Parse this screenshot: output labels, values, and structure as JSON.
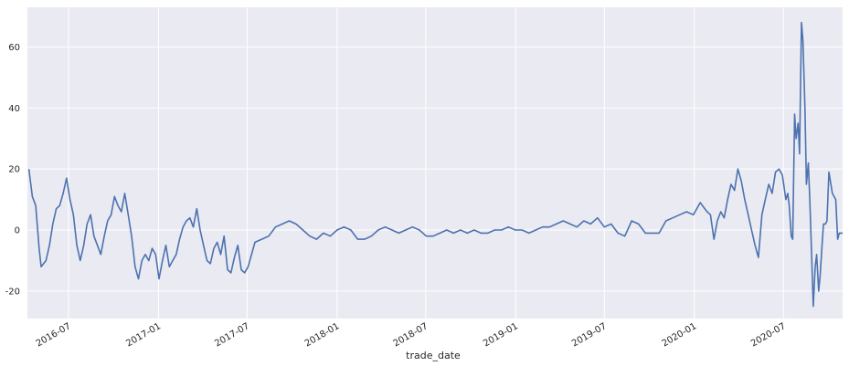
{
  "chart_data": {
    "type": "line",
    "title": "",
    "xlabel": "trade_date",
    "ylabel": "",
    "grid": true,
    "legend": "none",
    "colors": {
      "background": "#eaeaf2",
      "grid": "#ffffff",
      "line": "#4c72b0",
      "text": "#262626"
    },
    "xlim": [
      "2016-04-08",
      "2020-10-30"
    ],
    "ylim": [
      -29,
      73
    ],
    "x_ticks": [
      "2016-07",
      "2017-01",
      "2017-07",
      "2018-01",
      "2018-07",
      "2019-01",
      "2019-07",
      "2020-01",
      "2020-07"
    ],
    "y_ticks": [
      "-20",
      "0",
      "20",
      "40",
      "60"
    ],
    "series": [
      {
        "x": [
          "2016-04-11",
          "2016-04-18",
          "2016-04-25",
          "2016-05-02",
          "2016-05-06",
          "2016-05-16",
          "2016-05-23",
          "2016-05-30",
          "2016-06-06",
          "2016-06-13",
          "2016-06-20",
          "2016-06-27",
          "2016-07-04",
          "2016-07-11",
          "2016-07-18",
          "2016-07-25",
          "2016-08-01",
          "2016-08-08",
          "2016-08-15",
          "2016-08-22",
          "2016-08-29",
          "2016-09-05",
          "2016-09-12",
          "2016-09-19",
          "2016-09-26",
          "2016-10-03",
          "2016-10-10",
          "2016-10-17",
          "2016-10-24",
          "2016-10-31",
          "2016-11-07",
          "2016-11-14",
          "2016-11-21",
          "2016-11-28",
          "2016-12-05",
          "2016-12-12",
          "2016-12-19",
          "2016-12-26",
          "2017-01-02",
          "2017-01-09",
          "2017-01-16",
          "2017-01-23",
          "2017-01-30",
          "2017-02-06",
          "2017-02-13",
          "2017-02-20",
          "2017-02-27",
          "2017-03-06",
          "2017-03-13",
          "2017-03-20",
          "2017-03-27",
          "2017-04-03",
          "2017-04-10",
          "2017-04-17",
          "2017-04-24",
          "2017-05-01",
          "2017-05-08",
          "2017-05-15",
          "2017-05-22",
          "2017-05-29",
          "2017-06-05",
          "2017-06-12",
          "2017-06-19",
          "2017-06-26",
          "2017-07-03",
          "2017-07-17",
          "2017-07-31",
          "2017-08-14",
          "2017-08-28",
          "2017-09-11",
          "2017-09-25",
          "2017-10-09",
          "2017-10-23",
          "2017-11-06",
          "2017-11-20",
          "2017-12-04",
          "2017-12-18",
          "2018-01-01",
          "2018-01-15",
          "2018-01-29",
          "2018-02-12",
          "2018-02-26",
          "2018-03-12",
          "2018-03-26",
          "2018-04-09",
          "2018-04-23",
          "2018-05-07",
          "2018-05-21",
          "2018-06-04",
          "2018-06-18",
          "2018-07-02",
          "2018-07-16",
          "2018-07-30",
          "2018-08-13",
          "2018-08-27",
          "2018-09-10",
          "2018-09-24",
          "2018-10-08",
          "2018-10-22",
          "2018-11-05",
          "2018-11-19",
          "2018-12-03",
          "2018-12-17",
          "2018-12-31",
          "2019-01-14",
          "2019-01-28",
          "2019-02-11",
          "2019-02-25",
          "2019-03-11",
          "2019-03-25",
          "2019-04-08",
          "2019-04-22",
          "2019-05-06",
          "2019-05-20",
          "2019-06-03",
          "2019-06-17",
          "2019-07-01",
          "2019-07-15",
          "2019-07-29",
          "2019-08-12",
          "2019-08-26",
          "2019-09-09",
          "2019-09-23",
          "2019-10-07",
          "2019-10-21",
          "2019-11-04",
          "2019-11-18",
          "2019-12-02",
          "2019-12-16",
          "2019-12-30",
          "2020-01-13",
          "2020-01-27",
          "2020-02-03",
          "2020-02-10",
          "2020-02-17",
          "2020-02-24",
          "2020-03-02",
          "2020-03-09",
          "2020-03-16",
          "2020-03-23",
          "2020-03-30",
          "2020-04-06",
          "2020-04-13",
          "2020-04-20",
          "2020-04-27",
          "2020-05-04",
          "2020-05-11",
          "2020-05-18",
          "2020-05-25",
          "2020-06-01",
          "2020-06-08",
          "2020-06-15",
          "2020-06-22",
          "2020-06-29",
          "2020-07-06",
          "2020-07-10",
          "2020-07-13",
          "2020-07-17",
          "2020-07-20",
          "2020-07-24",
          "2020-07-27",
          "2020-07-31",
          "2020-08-03",
          "2020-08-07",
          "2020-08-10",
          "2020-08-14",
          "2020-08-17",
          "2020-08-21",
          "2020-08-24",
          "2020-08-28",
          "2020-08-31",
          "2020-09-04",
          "2020-09-07",
          "2020-09-11",
          "2020-09-14",
          "2020-09-18",
          "2020-09-21",
          "2020-09-25",
          "2020-09-28",
          "2020-10-02",
          "2020-10-09",
          "2020-10-16",
          "2020-10-20",
          "2020-10-23",
          "2020-10-26",
          "2020-10-30"
        ],
        "y": [
          20,
          11,
          8,
          -6,
          -12,
          -10,
          -5,
          2,
          7,
          8,
          12,
          17,
          10,
          5,
          -5,
          -10,
          -5,
          2,
          5,
          -2,
          -5,
          -8,
          -2,
          3,
          5,
          11,
          8,
          6,
          12,
          5,
          -2,
          -12,
          -16,
          -10,
          -8,
          -10,
          -6,
          -8,
          -16,
          -10,
          -5,
          -12,
          -10,
          -8,
          -3,
          1,
          3,
          4,
          1,
          7,
          0,
          -5,
          -10,
          -11,
          -6,
          -4,
          -8,
          -2,
          -13,
          -14,
          -9,
          -5,
          -13,
          -14,
          -12,
          -4,
          -3,
          -2,
          1,
          2,
          3,
          2,
          0,
          -2,
          -3,
          -1,
          -2,
          0,
          1,
          0,
          -3,
          -3,
          -2,
          0,
          1,
          0,
          -1,
          0,
          1,
          0,
          -2,
          -2,
          -1,
          0,
          -1,
          0,
          -1,
          0,
          -1,
          -1,
          0,
          0,
          1,
          0,
          0,
          -1,
          0,
          1,
          1,
          2,
          3,
          2,
          1,
          3,
          2,
          4,
          1,
          2,
          -1,
          -2,
          3,
          2,
          -1,
          -1,
          -1,
          3,
          4,
          5,
          6,
          5,
          9,
          6,
          5,
          -3,
          3,
          6,
          4,
          10,
          15,
          13,
          20,
          16,
          10,
          5,
          0,
          -5,
          -9,
          5,
          10,
          15,
          12,
          19,
          20,
          18,
          10,
          12,
          8,
          -2,
          -3,
          38,
          30,
          35,
          25,
          68,
          62,
          40,
          15,
          22,
          10,
          -10,
          -25,
          -12,
          -8,
          -20,
          -15,
          -5,
          2,
          2,
          3,
          19,
          12,
          10,
          -3,
          -1,
          -1,
          -1
        ],
        "__note": "digitized"
      }
    ]
  }
}
